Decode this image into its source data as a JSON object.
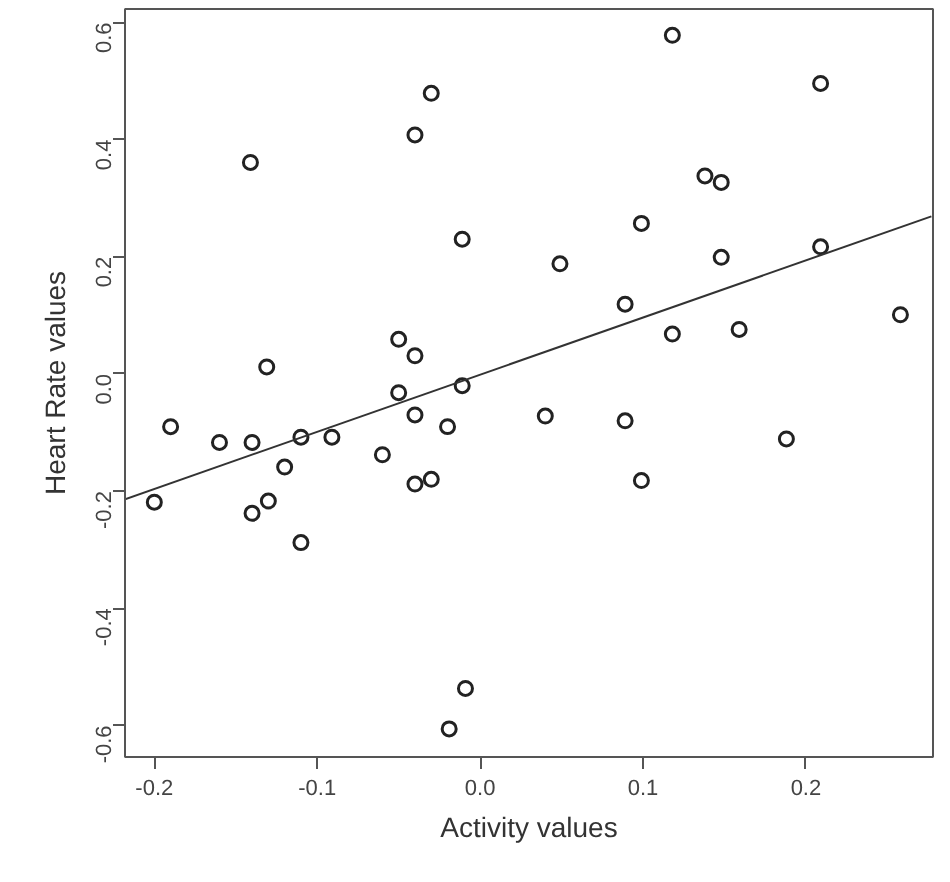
{
  "chart_data": {
    "type": "scatter",
    "xlabel": "Activity values",
    "ylabel": "Heart Rate values",
    "xlim": [
      -0.218,
      0.278
    ],
    "ylim": [
      -0.654,
      0.623
    ],
    "xticks": [
      -0.2,
      -0.1,
      {
        "value": 0,
        "label": "0.0"
      },
      0.1,
      0.2
    ],
    "yticks": [
      -0.6,
      -0.4,
      -0.2,
      {
        "value": 0,
        "label": "0.0"
      },
      0.2,
      0.4,
      0.6
    ],
    "grid": false,
    "series": [
      {
        "marker": "circle",
        "color": "#222222",
        "x": [
          -0.141,
          -0.03,
          -0.04,
          -0.011,
          -0.131,
          -0.05,
          -0.04,
          -0.05,
          -0.011,
          -0.04,
          -0.02,
          -0.19,
          -0.16,
          -0.14,
          -0.11,
          -0.091,
          -0.06,
          -0.12,
          -0.2,
          -0.14,
          -0.13,
          -0.11,
          -0.04,
          -0.03,
          -0.009,
          -0.019,
          0.118,
          0.209,
          0.138,
          0.148,
          0.099,
          0.049,
          0.148,
          0.209,
          0.089,
          0.118,
          0.159,
          0.258,
          0.04,
          0.089,
          0.188,
          0.099
        ],
        "values": [
          0.361,
          0.479,
          0.408,
          0.23,
          0.012,
          0.059,
          0.031,
          -0.032,
          -0.02,
          -0.07,
          -0.09,
          -0.09,
          -0.117,
          -0.117,
          -0.108,
          -0.108,
          -0.138,
          -0.159,
          -0.219,
          -0.238,
          -0.217,
          -0.288,
          -0.188,
          -0.18,
          -0.537,
          -0.606,
          0.578,
          0.496,
          0.338,
          0.327,
          0.257,
          0.188,
          0.199,
          0.217,
          0.119,
          0.068,
          0.076,
          0.101,
          -0.072,
          -0.08,
          -0.111,
          -0.182
        ]
      },
      {
        "type": "line",
        "color": "#333333",
        "line_style": "solid",
        "x": [
          -0.218,
          0.277
        ],
        "values": [
          -0.214,
          0.269
        ]
      }
    ]
  }
}
